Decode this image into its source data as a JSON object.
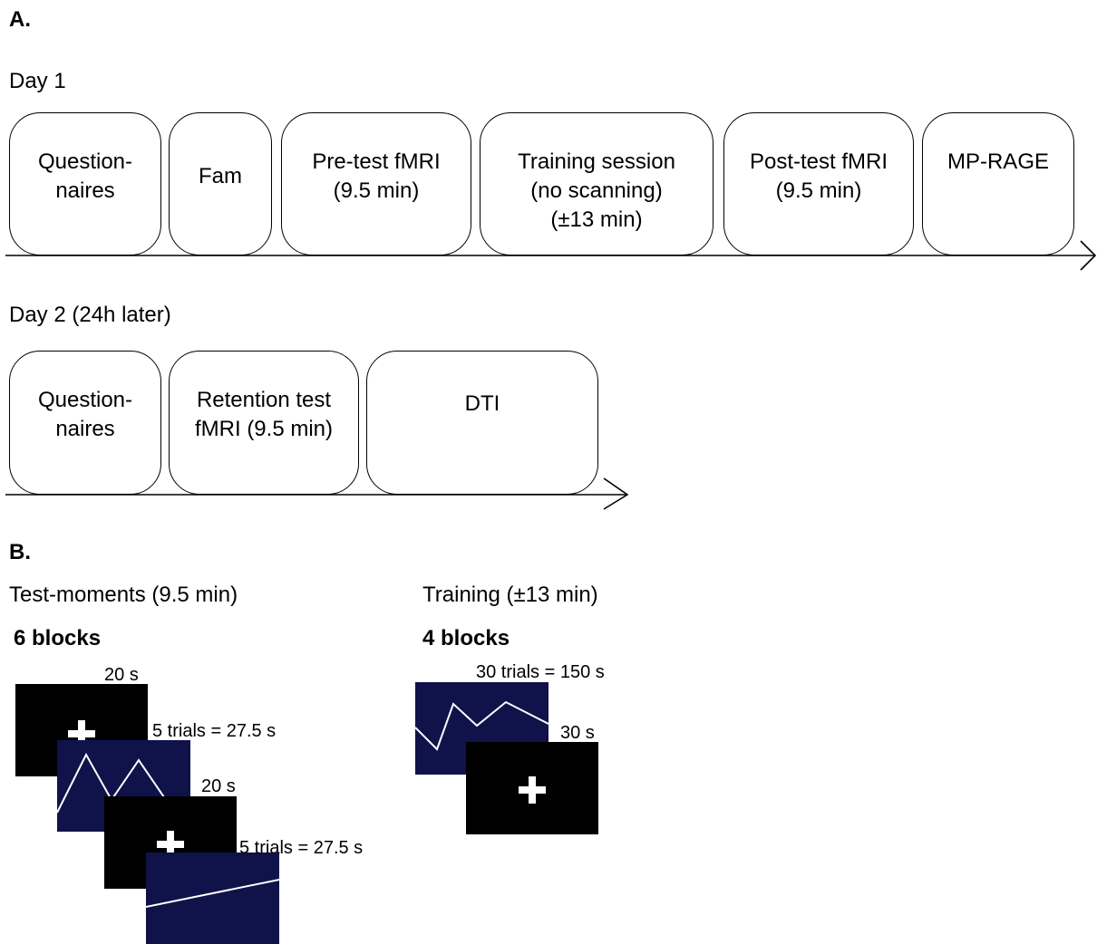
{
  "panel_a": {
    "label": "A.",
    "day1": {
      "title": "Day 1",
      "steps": [
        {
          "text": "Question-\nnaires"
        },
        {
          "text": "Fam"
        },
        {
          "text": "Pre-test fMRI\n(9.5 min)"
        },
        {
          "text": "Training session\n(no scanning)\n(±13 min)"
        },
        {
          "text": "Post-test fMRI\n(9.5 min)"
        },
        {
          "text": "MP-RAGE"
        }
      ]
    },
    "day2": {
      "title": "Day 2 (24h later)",
      "steps": [
        {
          "text": "Question-\nnaires"
        },
        {
          "text": "Retention test\nfMRI (9.5 min)"
        },
        {
          "text": "DTI"
        }
      ]
    }
  },
  "panel_b": {
    "label": "B.",
    "test": {
      "title": "Test-moments (9.5 min)",
      "blocks": "6 blocks",
      "rest_label_1": "20 s",
      "trials_label_1": "5 trials = 27.5 s",
      "rest_label_2": "20 s",
      "trials_label_2": "5 trials = 27.5 s"
    },
    "training": {
      "title": "Training (±13 min)",
      "blocks": "4 blocks",
      "trials_label": "30 trials = 150 s",
      "rest_label": "30 s"
    }
  },
  "colors": {
    "rest_screen": "#000000",
    "task_screen": "#10124a",
    "line": "#ffffff"
  }
}
